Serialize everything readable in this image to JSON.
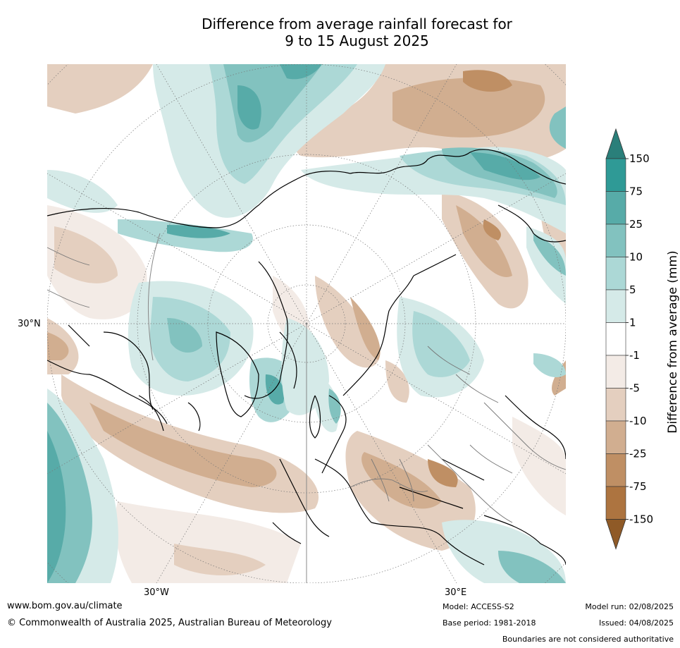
{
  "title": {
    "line1": "Difference from average rainfall forecast for",
    "line2": "9 to 15 August 2025"
  },
  "map": {
    "projection": "north polar stereographic",
    "lat_label": "30°N",
    "lon_labels": [
      "30°W",
      "30°E"
    ]
  },
  "legend": {
    "title": "Difference from average (mm)",
    "ticks": [
      "150",
      "75",
      "25",
      "10",
      "5",
      "1",
      "-1",
      "-5",
      "-10",
      "-25",
      "-75",
      "-150"
    ],
    "colors": [
      "#2e8b87",
      "#2f9a96",
      "#57aba8",
      "#82c2bf",
      "#acd8d6",
      "#d5eae8",
      "#ffffff",
      "#f3ebe6",
      "#e4cfbf",
      "#d1ae90",
      "#bf8f64",
      "#ad7440",
      "#8f5a27"
    ],
    "upper_extension": "#2a7f7a",
    "lower_extension": "#8f5a27"
  },
  "footer": {
    "website": "www.bom.gov.au/climate",
    "copyright": "© Commonwealth of Australia 2025, Australian Bureau of Meteorology",
    "model": "Model: ACCESS-S2",
    "base_period": "Base period: 1981-2018",
    "model_run": "Model run: 02/08/2025",
    "issued": "Issued: 04/08/2025",
    "disclaimer": "Boundaries are not considered authoritative"
  }
}
